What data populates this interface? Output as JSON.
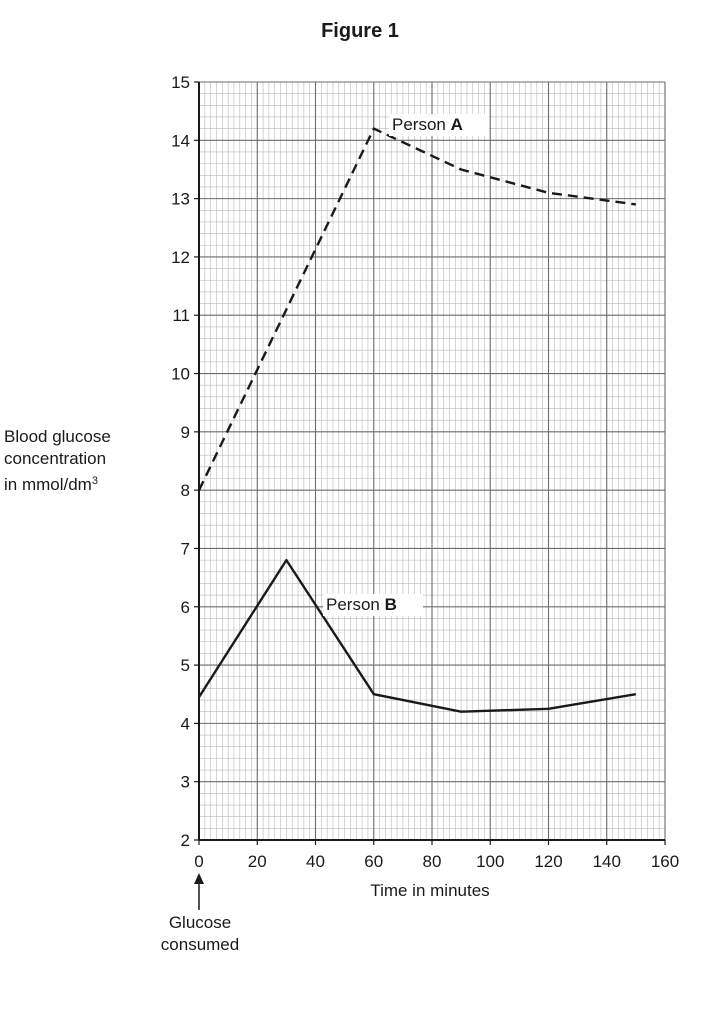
{
  "figure_title": "Figure 1",
  "annotation": {
    "line1": "Glucose",
    "line2": "consumed"
  },
  "chart_data": {
    "type": "line",
    "ylabel": {
      "line1": "Blood glucose",
      "line2": "concentration",
      "line3_prefix": "in mmol/dm",
      "line3_sup": "3"
    },
    "xlabel": "Time in minutes",
    "xlim": [
      0,
      160
    ],
    "ylim": [
      2,
      15
    ],
    "x_ticks": [
      0,
      20,
      40,
      60,
      80,
      100,
      120,
      140,
      160
    ],
    "y_ticks": [
      2,
      3,
      4,
      5,
      6,
      7,
      8,
      9,
      10,
      11,
      12,
      13,
      14,
      15
    ],
    "grid": true,
    "series": [
      {
        "name": "Person A",
        "name_prefix": "Person ",
        "name_bold": "A",
        "style": "dashed",
        "color": "#1a1a1a",
        "points": [
          [
            0,
            8.0
          ],
          [
            60,
            14.2
          ],
          [
            90,
            13.5
          ],
          [
            120,
            13.1
          ],
          [
            150,
            12.9
          ]
        ]
      },
      {
        "name": "Person B",
        "name_prefix": "Person ",
        "name_bold": "B",
        "style": "solid",
        "color": "#1a1a1a",
        "points": [
          [
            0,
            4.45
          ],
          [
            30,
            6.8
          ],
          [
            60,
            4.5
          ],
          [
            90,
            4.2
          ],
          [
            120,
            4.25
          ],
          [
            150,
            4.5
          ]
        ]
      }
    ]
  }
}
